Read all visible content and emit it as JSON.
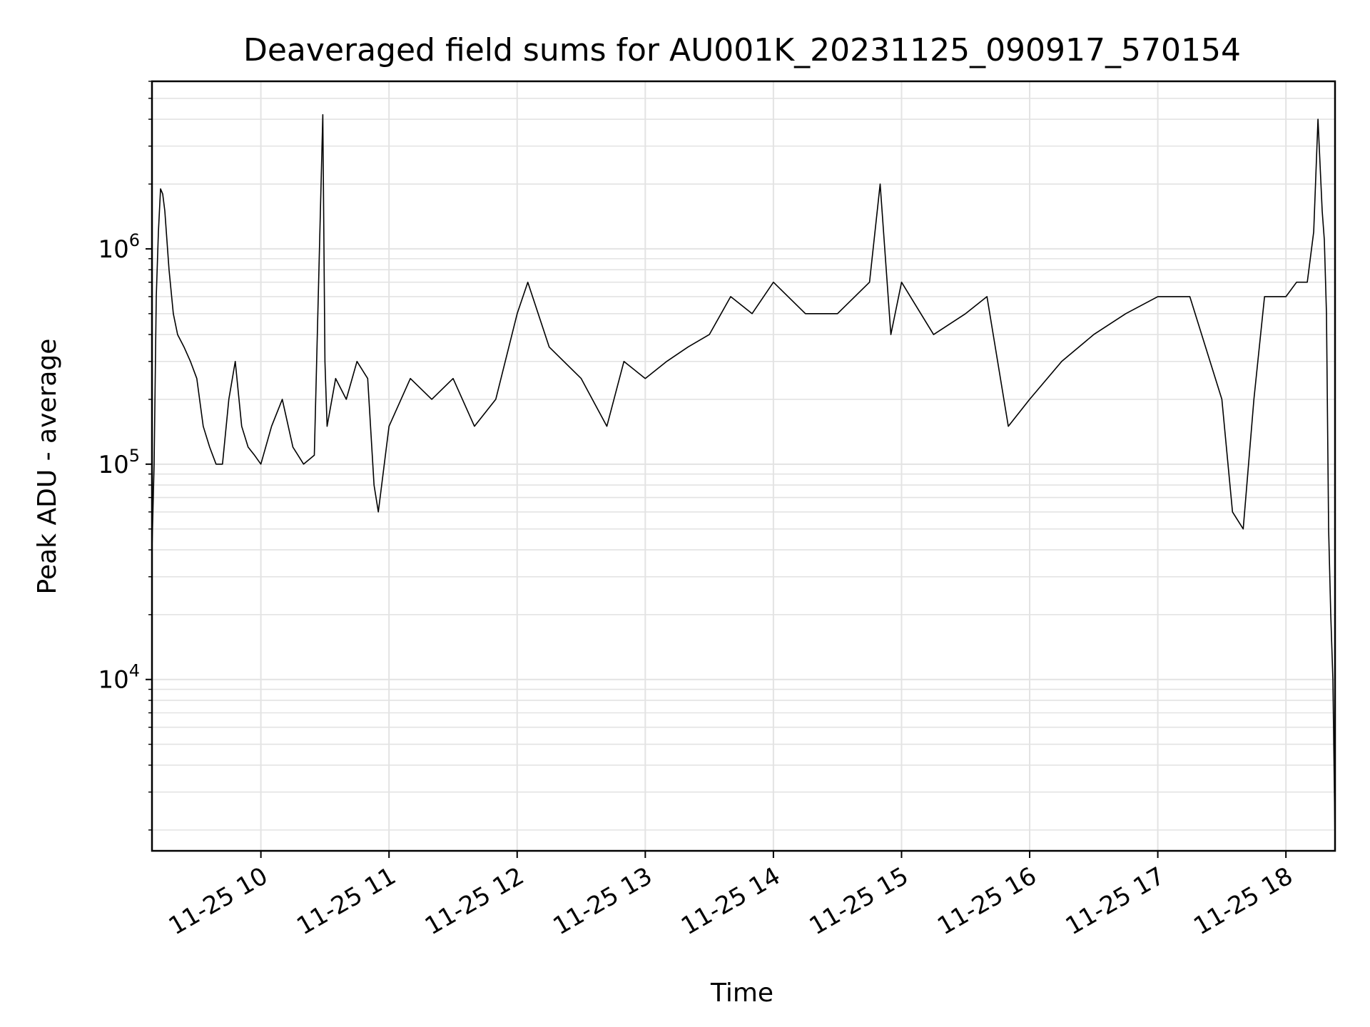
{
  "chart_data": {
    "type": "line",
    "title": "Deaveraged field sums for AU001K_20231125_090917_570154",
    "xlabel": "Time",
    "ylabel": "Peak ADU - average",
    "x_tick_labels": [
      "11-25 10",
      "11-25 11",
      "11-25 12",
      "11-25 13",
      "11-25 14",
      "11-25 15",
      "11-25 16",
      "11-25 17",
      "11-25 18"
    ],
    "y_tick_labels": [
      {
        "base": "10",
        "exp": "4",
        "value": 10000
      },
      {
        "base": "10",
        "exp": "5",
        "value": 100000
      },
      {
        "base": "10",
        "exp": "6",
        "value": 1000000
      }
    ],
    "xlim": [
      "2023-11-25 09:09",
      "2023-11-25 18:23"
    ],
    "ylim": [
      1600,
      6000000
    ],
    "yscale": "log",
    "grid": "both, major and minor",
    "line_color": "#000000",
    "series": [
      {
        "x": [
          "2023-11-25 09:09",
          "2023-11-25 09:10",
          "2023-11-25 09:11",
          "2023-11-25 09:12",
          "2023-11-25 09:13",
          "2023-11-25 09:14",
          "2023-11-25 09:15",
          "2023-11-25 09:16",
          "2023-11-25 09:17",
          "2023-11-25 09:19",
          "2023-11-25 09:21",
          "2023-11-25 09:24",
          "2023-11-25 09:27",
          "2023-11-25 09:30",
          "2023-11-25 09:33",
          "2023-11-25 09:36",
          "2023-11-25 09:39",
          "2023-11-25 09:42",
          "2023-11-25 09:45",
          "2023-11-25 09:48",
          "2023-11-25 09:51",
          "2023-11-25 09:54",
          "2023-11-25 09:57",
          "2023-11-25 10:00",
          "2023-11-25 10:05",
          "2023-11-25 10:10",
          "2023-11-25 10:15",
          "2023-11-25 10:20",
          "2023-11-25 10:25",
          "2023-11-25 10:29",
          "2023-11-25 10:30",
          "2023-11-25 10:31",
          "2023-11-25 10:35",
          "2023-11-25 10:40",
          "2023-11-25 10:45",
          "2023-11-25 10:50",
          "2023-11-25 10:53",
          "2023-11-25 10:55",
          "2023-11-25 11:00",
          "2023-11-25 11:10",
          "2023-11-25 11:20",
          "2023-11-25 11:30",
          "2023-11-25 11:40",
          "2023-11-25 11:50",
          "2023-11-25 12:00",
          "2023-11-25 12:05",
          "2023-11-25 12:15",
          "2023-11-25 12:30",
          "2023-11-25 12:42",
          "2023-11-25 12:50",
          "2023-11-25 13:00",
          "2023-11-25 13:10",
          "2023-11-25 13:20",
          "2023-11-25 13:30",
          "2023-11-25 13:40",
          "2023-11-25 13:50",
          "2023-11-25 14:00",
          "2023-11-25 14:15",
          "2023-11-25 14:30",
          "2023-11-25 14:45",
          "2023-11-25 14:50",
          "2023-11-25 14:55",
          "2023-11-25 15:00",
          "2023-11-25 15:15",
          "2023-11-25 15:30",
          "2023-11-25 15:40",
          "2023-11-25 15:50",
          "2023-11-25 16:00",
          "2023-11-25 16:15",
          "2023-11-25 16:30",
          "2023-11-25 16:45",
          "2023-11-25 17:00",
          "2023-11-25 17:15",
          "2023-11-25 17:30",
          "2023-11-25 17:35",
          "2023-11-25 17:40",
          "2023-11-25 17:45",
          "2023-11-25 17:50",
          "2023-11-25 18:00",
          "2023-11-25 18:05",
          "2023-11-25 18:10",
          "2023-11-25 18:13",
          "2023-11-25 18:15",
          "2023-11-25 18:17",
          "2023-11-25 18:18",
          "2023-11-25 18:19",
          "2023-11-25 18:20",
          "2023-11-25 18:21",
          "2023-11-25 18:22",
          "2023-11-25 18:23"
        ],
        "y": [
          40000,
          100000,
          600000,
          1200000,
          1900000,
          1800000,
          1500000,
          1100000,
          800000,
          500000,
          400000,
          350000,
          300000,
          250000,
          150000,
          120000,
          100000,
          100000,
          200000,
          300000,
          150000,
          120000,
          110000,
          100000,
          150000,
          200000,
          120000,
          100000,
          110000,
          4200000,
          300000,
          150000,
          250000,
          200000,
          300000,
          250000,
          80000,
          60000,
          150000,
          250000,
          200000,
          250000,
          150000,
          200000,
          500000,
          700000,
          350000,
          250000,
          150000,
          300000,
          250000,
          300000,
          350000,
          400000,
          600000,
          500000,
          700000,
          500000,
          500000,
          700000,
          2000000,
          400000,
          700000,
          400000,
          500000,
          600000,
          150000,
          200000,
          300000,
          400000,
          500000,
          600000,
          600000,
          200000,
          60000,
          50000,
          200000,
          600000,
          600000,
          700000,
          700000,
          1200000,
          4000000,
          1500000,
          1100000,
          500000,
          50000,
          20000,
          10000,
          1800
        ]
      }
    ]
  }
}
